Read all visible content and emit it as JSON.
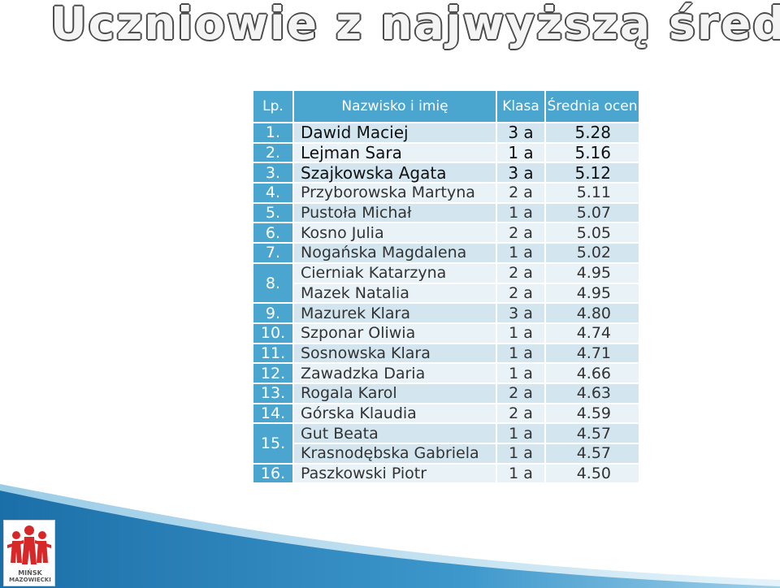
{
  "slide": {
    "title": "Uczniowie z najwyższą średnią SG"
  },
  "table": {
    "headers": {
      "lp": "Lp.",
      "name": "Nazwisko i imię",
      "klasa": "Klasa",
      "avg": "Średnia ocen"
    },
    "rows": [
      {
        "lp": "1.",
        "entries": [
          {
            "name": "Dawid Maciej",
            "klasa": "3 a",
            "avg": "5.28"
          }
        ]
      },
      {
        "lp": "2.",
        "entries": [
          {
            "name": "Lejman Sara",
            "klasa": "1 a",
            "avg": "5.16"
          }
        ]
      },
      {
        "lp": "3.",
        "entries": [
          {
            "name": "Szajkowska Agata",
            "klasa": "3 a",
            "avg": "5.12"
          }
        ]
      },
      {
        "lp": "4.",
        "entries": [
          {
            "name": "Przyborowska Martyna",
            "klasa": "2 a",
            "avg": "5.11"
          }
        ]
      },
      {
        "lp": "5.",
        "entries": [
          {
            "name": "Pustoła Michał",
            "klasa": "1 a",
            "avg": "5.07"
          }
        ]
      },
      {
        "lp": "6.",
        "entries": [
          {
            "name": "Kosno Julia",
            "klasa": "2 a",
            "avg": "5.05"
          }
        ]
      },
      {
        "lp": "7.",
        "entries": [
          {
            "name": "Nogańska Magdalena",
            "klasa": "1 a",
            "avg": "5.02"
          }
        ]
      },
      {
        "lp": "8.",
        "entries": [
          {
            "name": "Cierniak Katarzyna",
            "klasa": "2 a",
            "avg": "4.95"
          },
          {
            "name": "Mazek Natalia",
            "klasa": "2 a",
            "avg": "4.95"
          }
        ]
      },
      {
        "lp": "9.",
        "entries": [
          {
            "name": "Mazurek Klara",
            "klasa": "3 a",
            "avg": "4.80"
          }
        ]
      },
      {
        "lp": "10.",
        "entries": [
          {
            "name": "Szponar Oliwia",
            "klasa": "1 a",
            "avg": "4.74"
          }
        ]
      },
      {
        "lp": "11.",
        "entries": [
          {
            "name": "Sosnowska Klara",
            "klasa": "1 a",
            "avg": "4.71"
          }
        ]
      },
      {
        "lp": "12.",
        "entries": [
          {
            "name": "Zawadzka Daria",
            "klasa": "1 a",
            "avg": "4.66"
          }
        ]
      },
      {
        "lp": "13.",
        "entries": [
          {
            "name": "Rogala Karol",
            "klasa": "2 a",
            "avg": "4.63"
          }
        ]
      },
      {
        "lp": "14.",
        "entries": [
          {
            "name": "Górska Klaudia",
            "klasa": "2 a",
            "avg": "4.59"
          }
        ]
      },
      {
        "lp": "15.",
        "entries": [
          {
            "name": "Gut Beata",
            "klasa": "1 a",
            "avg": "4.57"
          },
          {
            "name": "Krasnodębska Gabriela",
            "klasa": "1 a",
            "avg": "4.57"
          }
        ]
      },
      {
        "lp": "16.",
        "entries": [
          {
            "name": "Paszkowski Piotr",
            "klasa": "1 a",
            "avg": "4.50"
          }
        ]
      }
    ]
  },
  "logo": {
    "line1": "MIŃSK",
    "line2": "MAZOWIECKI",
    "icon": "people-figures-logo-icon"
  },
  "colors": {
    "header_bg": "#4aa6cf",
    "row_bg": "#d3e6ef",
    "row_alt_bg": "#e9f2f7",
    "wave": "#2a83b9"
  }
}
